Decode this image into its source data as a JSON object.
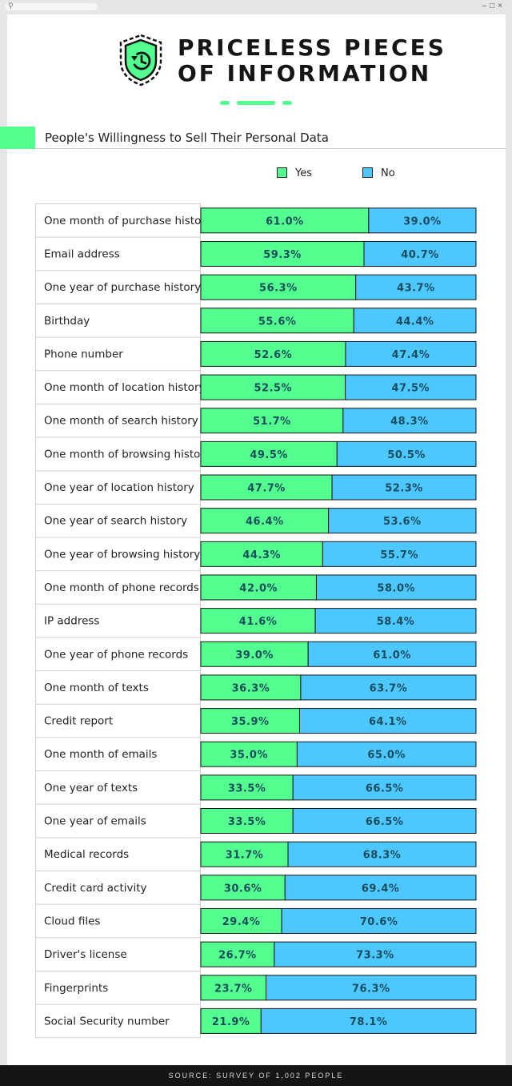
{
  "header": {
    "title_line1": "PRICELESS PIECES",
    "title_line2": "OF INFORMATION",
    "subtitle": "People's Willingness to Sell Their Personal Data",
    "icon": "shield-history-icon"
  },
  "footer": {
    "source": "SOURCE: SURVEY OF 1,002 PEOPLE"
  },
  "colors": {
    "yes": "#52ff8f",
    "no": "#4dc7ff",
    "text": "#1a4d5c",
    "accent": "#52ff8f"
  },
  "chart_data": {
    "type": "bar",
    "orientation": "horizontal",
    "stacked": true,
    "normalized": true,
    "title": "People's Willingness to Sell Their Personal Data",
    "legend": [
      "Yes",
      "No"
    ],
    "legend_position": "top",
    "categories": [
      "One month of purchase history",
      "Email address",
      "One year of purchase history",
      "Birthday",
      "Phone number",
      "One month of location history",
      "One month of search history",
      "One month of browsing history",
      "One year of location history",
      "One year of search history",
      "One year of browsing history",
      "One month of phone records",
      "IP address",
      "One year of phone records",
      "One month of texts",
      "Credit report",
      "One month of emails",
      "One year of texts",
      "One year of emails",
      "Medical records",
      "Credit card activity",
      "Cloud files",
      "Driver's license",
      "Fingerprints",
      "Social Security number"
    ],
    "series": [
      {
        "name": "Yes",
        "values": [
          61.0,
          59.3,
          56.3,
          55.6,
          52.6,
          52.5,
          51.7,
          49.5,
          47.7,
          46.4,
          44.3,
          42.0,
          41.6,
          39.0,
          36.3,
          35.9,
          35.0,
          33.5,
          33.5,
          31.7,
          30.6,
          29.4,
          26.7,
          23.7,
          21.9
        ]
      },
      {
        "name": "No",
        "values": [
          39.0,
          40.7,
          43.7,
          44.4,
          47.4,
          47.5,
          48.3,
          50.5,
          52.3,
          53.6,
          55.7,
          58.0,
          58.4,
          61.0,
          63.7,
          64.1,
          65.0,
          66.5,
          66.5,
          68.3,
          69.4,
          70.6,
          73.3,
          76.3,
          78.1
        ]
      }
    ],
    "value_labels": {
      "yes": [
        "61.0%",
        "59.3%",
        "56.3%",
        "55.6%",
        "52.6%",
        "52.5%",
        "51.7%",
        "49.5%",
        "47.7%",
        "46.4%",
        "44.3%",
        "42.0%",
        "41.6%",
        "39.0%",
        "36.3%",
        "35.9%",
        "35.0%",
        "33.5%",
        "33.5%",
        "31.7%",
        "30.6%",
        "29.4%",
        "26.7%",
        "23.7%",
        "21.9%"
      ],
      "no": [
        "39.0%",
        "40.7%",
        "43.7%",
        "44.4%",
        "47.4%",
        "47.5%",
        "48.3%",
        "50.5%",
        "52.3%",
        "53.6%",
        "55.7%",
        "58.0%",
        "58.4%",
        "61.0%",
        "63.7%",
        "64.1%",
        "65.0%",
        "66.5%",
        "66.5%",
        "68.3%",
        "69.4%",
        "70.6%",
        "73.3%",
        "76.3%",
        "78.1%"
      ]
    },
    "xlim": [
      0,
      100
    ],
    "xlabel": "",
    "ylabel": ""
  }
}
